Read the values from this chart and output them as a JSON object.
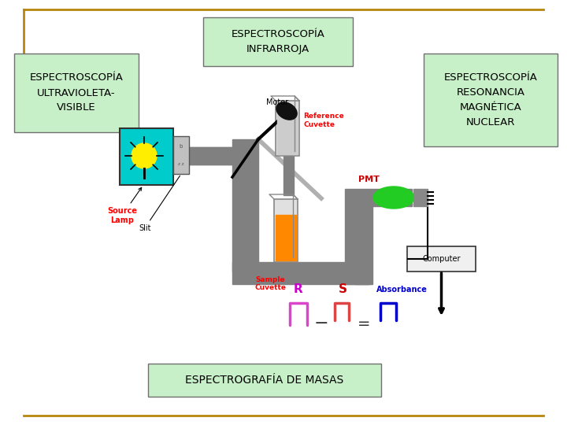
{
  "background_color": "#ffffff",
  "border_color": "#b8860b",
  "label_uv": "ESPECTROSCOPÍA\nULTRAVIOLETA-\nVISIBLE",
  "label_ir": "ESPECTROSCOPÍA\nINFRARROJA",
  "label_nmr": "ESPECTROSCOPÍA\nRESONANCIA\nMAGNÉTICA\nNUCLEAR",
  "label_mass": "ESPECTROGRAFÍA DE MASAS",
  "box_green": "#c8f0c8",
  "fig_width": 7.2,
  "fig_height": 5.4,
  "dpi": 100
}
